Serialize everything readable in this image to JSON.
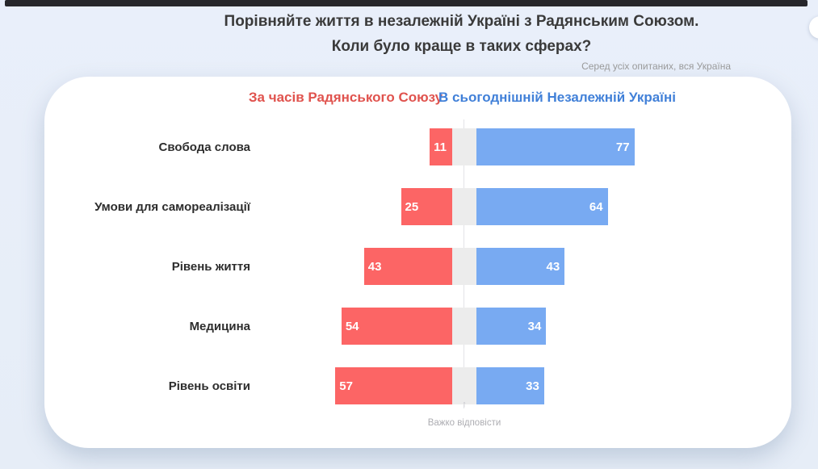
{
  "header": {
    "title_line1": "Порівняйте життя в незалежній Україні з Радянським Союзом.",
    "title_line2": "Коли було краще в таких сферах?",
    "subtitle": "Серед усіх опитаних, вся Україна"
  },
  "legend": {
    "left_label": "За часів Радянського Союзу",
    "right_label": "В сьогоднішній Незалежній Україні"
  },
  "colors": {
    "left_bar": "#fc6565",
    "right_bar": "#78aaf2",
    "left_legend_text": "#e0534e",
    "right_legend_text": "#4180d8",
    "background": "#e8eef8",
    "card": "#ffffff",
    "center_band": "#ececec",
    "topbar": "#27272b"
  },
  "icons": {
    "up_arrow": "↑"
  },
  "chart_data": {
    "type": "bar",
    "orientation": "horizontal-diverging",
    "title": "Порівняйте життя в незалежній Україні з Радянським Союзом. Коли було краще в таких сферах?",
    "subtitle": "Серед усіх опитаних, вся Україна",
    "categories": [
      "Свобода слова",
      "Умови для самореалізації",
      "Рівень життя",
      "Медицина",
      "Рівень освіти"
    ],
    "series": [
      {
        "name": "За часів Радянського Союзу",
        "color": "#fc6565",
        "values": [
          11,
          25,
          43,
          54,
          57
        ]
      },
      {
        "name": "В сьогоднішній Незалежній Україні",
        "color": "#78aaf2",
        "values": [
          77,
          64,
          43,
          34,
          33
        ]
      }
    ],
    "center_gap_label": "Важко відповісти",
    "value_unit": "percent",
    "xlim": [
      0,
      100
    ],
    "legend_position": "top",
    "grid": false
  }
}
